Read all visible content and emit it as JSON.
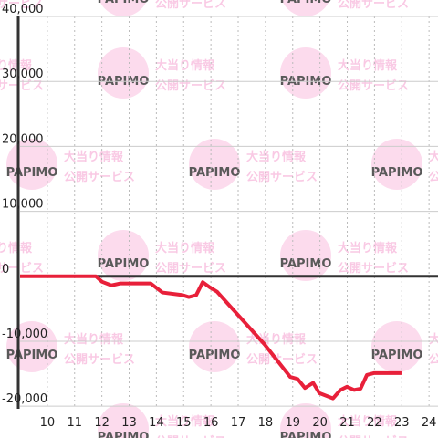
{
  "chart_data": {
    "type": "line",
    "watermark": {
      "brand": "PAPIMO",
      "lines": [
        "大当り情報",
        "公開サービス"
      ]
    },
    "x": [
      9.0,
      11.78,
      12.01,
      12.35,
      12.68,
      13.79,
      14.22,
      14.96,
      15.19,
      15.46,
      15.7,
      15.96,
      16.23,
      17.97,
      18.91,
      19.18,
      19.45,
      19.75,
      19.98,
      20.48,
      20.75,
      20.99,
      21.25,
      21.49,
      21.72,
      21.99,
      22.99
    ],
    "series": [
      {
        "color": "#e8203a",
        "values": [
          0,
          0,
          -850,
          -1400,
          -1100,
          -1100,
          -2500,
          -2900,
          -3200,
          -2900,
          -900,
          -1700,
          -2400,
          -10500,
          -15500,
          -15800,
          -17200,
          -16400,
          -18000,
          -18800,
          -17500,
          -17000,
          -17500,
          -17300,
          -15200,
          -14900,
          -14900
        ]
      }
    ],
    "xlim": [
      9,
      24.33
    ],
    "xticks": [
      10,
      11,
      12,
      13,
      14,
      15,
      16,
      17,
      18,
      19,
      20,
      21,
      22,
      23,
      24
    ],
    "ylim": [
      -20400,
      40000
    ],
    "yticks": [
      {
        "value": -20000,
        "label": "-20,000"
      },
      {
        "value": -10000,
        "label": "-10,000"
      },
      0,
      {
        "value": 10000,
        "label": "10,000"
      },
      {
        "value": 20000,
        "label": "20,000"
      },
      {
        "value": 30000,
        "label": "30,000"
      },
      {
        "value": 40000,
        "label": "40,000"
      }
    ],
    "grid": true
  }
}
